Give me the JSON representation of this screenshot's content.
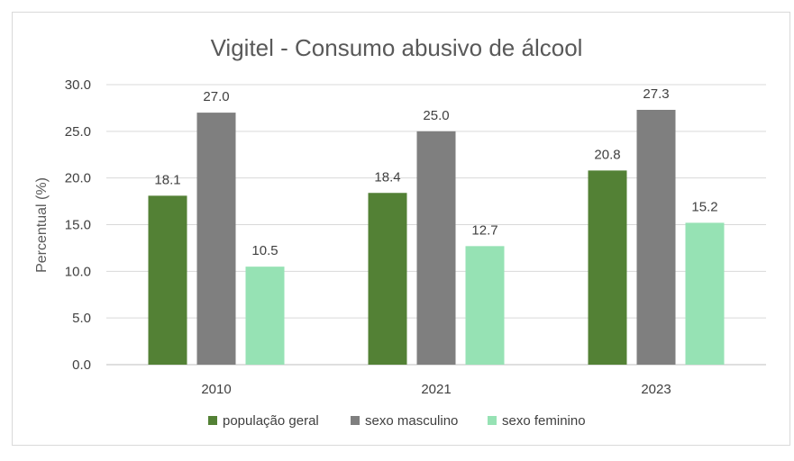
{
  "chart_data": {
    "type": "bar",
    "title": "Vigitel - Consumo abusivo de álcool",
    "xlabel": "",
    "ylabel": "Percentual (%)",
    "ylim": [
      0,
      30
    ],
    "yticks": [
      "0.0",
      "5.0",
      "10.0",
      "15.0",
      "20.0",
      "25.0",
      "30.0"
    ],
    "categories": [
      "2010",
      "2021",
      "2023"
    ],
    "series": [
      {
        "name": "população geral",
        "values": [
          18.1,
          18.4,
          20.8
        ],
        "labels": [
          "18.1",
          "18.4",
          "20.8"
        ],
        "color": "#538135"
      },
      {
        "name": "sexo masculino",
        "values": [
          27.0,
          25.0,
          27.3
        ],
        "labels": [
          "27.0",
          "25.0",
          "27.3"
        ],
        "color": "#7f7f7f"
      },
      {
        "name": "sexo feminino",
        "values": [
          10.5,
          12.7,
          15.2
        ],
        "labels": [
          "10.5",
          "12.7",
          "15.2"
        ],
        "color": "#96e2b4"
      }
    ],
    "grid": true,
    "legend_position": "bottom"
  }
}
